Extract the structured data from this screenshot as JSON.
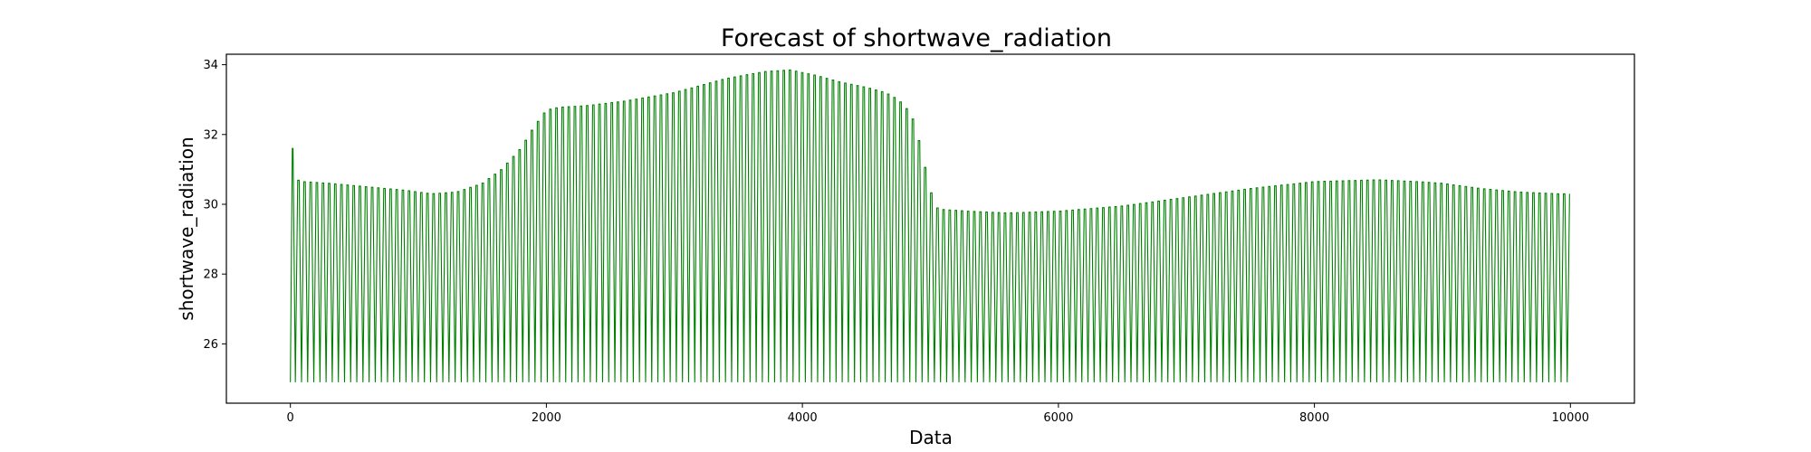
{
  "chart_data": {
    "type": "line",
    "title": "Forecast of shortwave_radiation",
    "xlabel": "Data",
    "ylabel": "shortwave_radiation",
    "xlim": [
      -500,
      10500
    ],
    "ylim": [
      24.3,
      34.3
    ],
    "x_ticks": [
      0,
      2000,
      4000,
      6000,
      8000,
      10000
    ],
    "y_ticks": [
      26,
      28,
      30,
      32,
      34
    ],
    "grid": false,
    "legend": "none",
    "line_color": "#008000",
    "series": [
      {
        "period": 48,
        "x_start": 0,
        "x_end": 10000,
        "trough": 24.9,
        "x": [
          0,
          15,
          30,
          50,
          100,
          300,
          600,
          900,
          1100,
          1300,
          1500,
          1650,
          1800,
          1900,
          2000,
          2100,
          2300,
          2600,
          3000,
          3400,
          3700,
          3900,
          4100,
          4300,
          4500,
          4650,
          4750,
          4850,
          4900,
          4950,
          5000,
          5050,
          5100,
          5300,
          5600,
          6000,
          6500,
          7000,
          7500,
          8000,
          8500,
          8800,
          9000,
          9300,
          9600,
          9900,
          10000
        ],
        "peak": [
          24.9,
          31.6,
          30.8,
          30.7,
          30.65,
          30.6,
          30.5,
          30.4,
          30.3,
          30.35,
          30.6,
          31.0,
          31.6,
          32.2,
          32.7,
          32.78,
          32.82,
          32.95,
          33.2,
          33.6,
          33.8,
          33.85,
          33.7,
          33.5,
          33.35,
          33.2,
          33.0,
          32.6,
          32.0,
          31.2,
          30.4,
          29.9,
          29.85,
          29.8,
          29.75,
          29.8,
          29.95,
          30.2,
          30.45,
          30.65,
          30.7,
          30.65,
          30.6,
          30.45,
          30.35,
          30.3,
          30.3
        ]
      }
    ]
  }
}
